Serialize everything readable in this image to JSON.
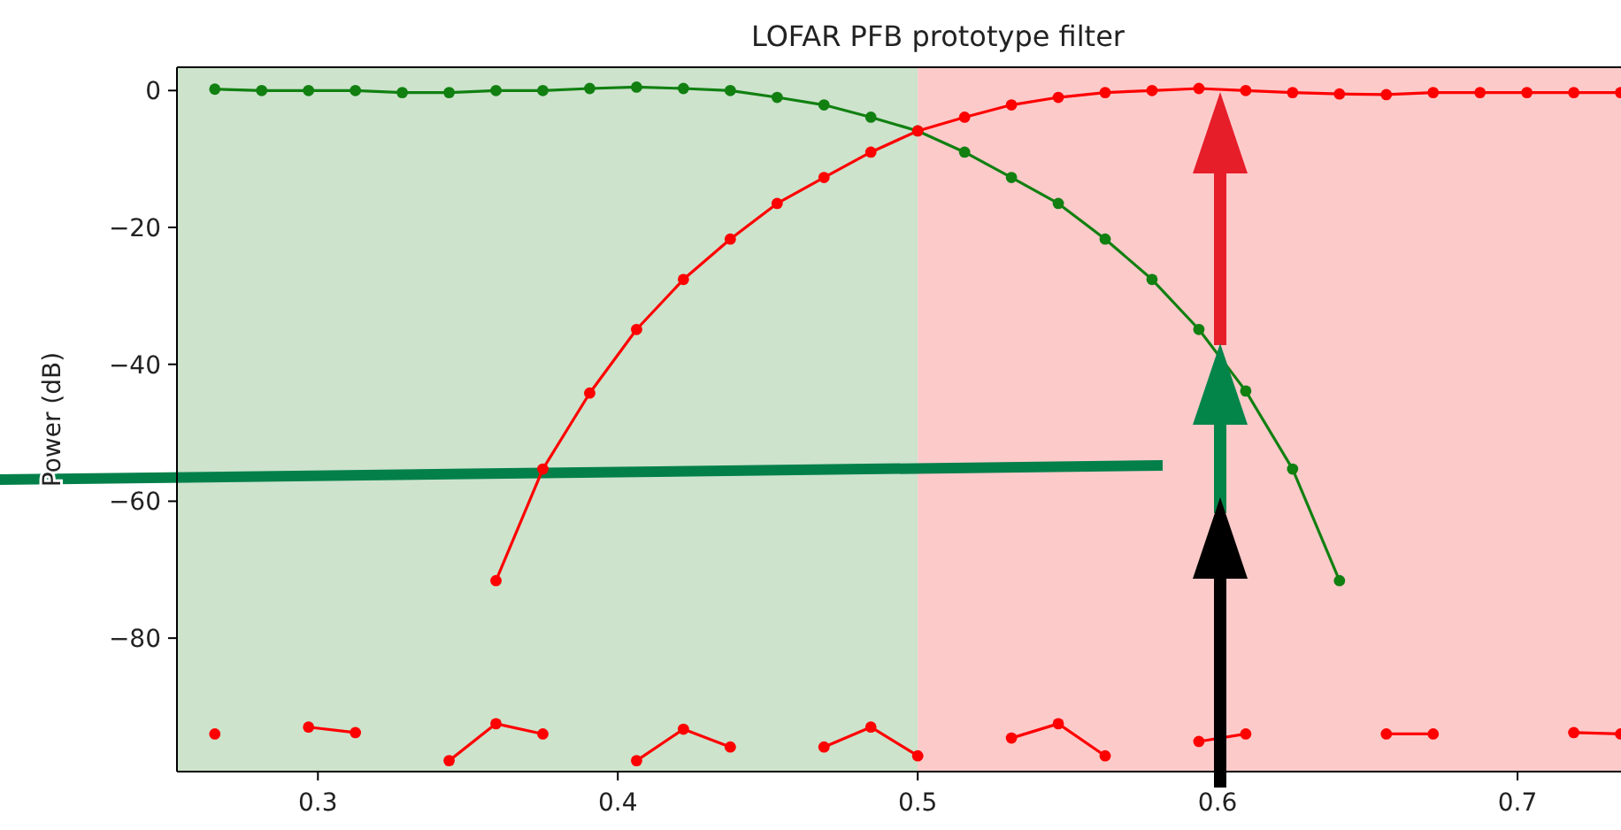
{
  "chart_data": {
    "type": "line",
    "title": "LOFAR PFB prototype filter",
    "ylabel": "Power (dB)",
    "x": [
      0.265625,
      0.28125,
      0.296875,
      0.3125,
      0.328125,
      0.34375,
      0.359375,
      0.375,
      0.390625,
      0.40625,
      0.421875,
      0.4375,
      0.453125,
      0.46875,
      0.484375,
      0.5,
      0.515625,
      0.53125,
      0.546875,
      0.5625,
      0.578125,
      0.59375,
      0.609375,
      0.625,
      0.640625,
      0.65625,
      0.671875,
      0.6875,
      0.703125,
      0.71875,
      0.734375
    ],
    "series": [
      {
        "color": "#118011",
        "values": [
          0.2,
          0,
          0,
          0,
          -0.3,
          -0.3,
          0,
          0,
          0.3,
          0.5,
          0.3,
          0,
          -1.0,
          -2.1,
          -3.9,
          -5.9,
          -9.0,
          -12.7,
          -16.5,
          -21.7,
          -27.6,
          -34.9,
          -43.9,
          -55.3,
          -71.6,
          null,
          null,
          null,
          null,
          null,
          null
        ]
      },
      {
        "color": "#ff0000",
        "values": [
          null,
          null,
          null,
          null,
          null,
          null,
          -71.6,
          -55.3,
          -44.2,
          -34.9,
          -27.6,
          -21.7,
          -16.5,
          -12.7,
          -9.0,
          -5.9,
          -3.9,
          -2.1,
          -1.0,
          -0.3,
          0,
          0.3,
          0,
          -0.3,
          -0.5,
          -0.6,
          -0.3,
          -0.3,
          -0.3,
          -0.3,
          -0.3
        ]
      },
      {
        "color": "#ff0000",
        "values": [
          -94.0,
          null,
          -93.0,
          -93.8,
          null,
          -97.9,
          -92.5,
          -94.0,
          null,
          -97.9,
          -93.3,
          -95.9,
          null,
          -95.9,
          -93.0,
          -97.2,
          null,
          -94.6,
          -92.5,
          -97.2,
          null,
          -95.1,
          -94.0,
          null,
          null,
          -94.0,
          -94.0,
          null,
          null,
          -93.8,
          -94.0
        ]
      }
    ],
    "xlim": [
      0.253,
      0.7345
    ],
    "ylim": [
      -99.5,
      3.4
    ],
    "xticks": [
      0.3,
      0.4,
      0.5,
      0.6,
      0.7
    ],
    "yticks": [
      {
        "value": 0,
        "label": "0"
      },
      {
        "value": -20,
        "label": "−20"
      },
      {
        "value": -40,
        "label": "−40"
      },
      {
        "value": -60,
        "label": "−60"
      },
      {
        "value": -80,
        "label": "−80"
      }
    ],
    "bands": [
      {
        "axis": "x",
        "from": 0.253,
        "to": 0.5,
        "color": "#cde3cc"
      },
      {
        "axis": "x",
        "from": 0.5,
        "to": 0.7345,
        "color": "#fdcaca"
      }
    ],
    "grid": false,
    "marker": "circle",
    "line_style": "solid"
  }
}
